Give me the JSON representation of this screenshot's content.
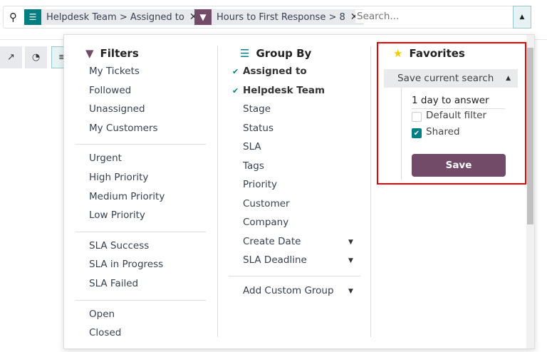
{
  "search": {
    "placeholder": "Search...",
    "facets": [
      {
        "label": "Helpdesk Team > Assigned to",
        "type": "group",
        "color": "#017e84"
      },
      {
        "label": "Hours to First Response > 8",
        "type": "filter",
        "color": "#714b67"
      }
    ]
  },
  "filters": {
    "title": "Filters",
    "groups": [
      [
        "My Tickets",
        "Followed",
        "Unassigned",
        "My Customers"
      ],
      [
        "Urgent",
        "High Priority",
        "Medium Priority",
        "Low Priority"
      ],
      [
        "SLA Success",
        "SLA in Progress",
        "SLA Failed"
      ],
      [
        "Open",
        "Closed"
      ]
    ]
  },
  "groupby": {
    "title": "Group By",
    "items": [
      {
        "label": "Assigned to",
        "selected": true
      },
      {
        "label": "Helpdesk Team",
        "selected": true
      },
      {
        "label": "Stage"
      },
      {
        "label": "Status"
      },
      {
        "label": "SLA"
      },
      {
        "label": "Tags"
      },
      {
        "label": "Priority"
      },
      {
        "label": "Customer"
      },
      {
        "label": "Company"
      },
      {
        "label": "Create Date",
        "caret": true
      },
      {
        "label": "SLA Deadline",
        "caret": true
      }
    ],
    "custom": "Add Custom Group"
  },
  "favorites": {
    "title": "Favorites",
    "save_current": "Save current search",
    "name": "1 day to answer",
    "default_filter": {
      "label": "Default filter",
      "checked": false
    },
    "shared": {
      "label": "Shared",
      "checked": true
    },
    "save": "Save",
    "highlight_color": "#e00000"
  }
}
